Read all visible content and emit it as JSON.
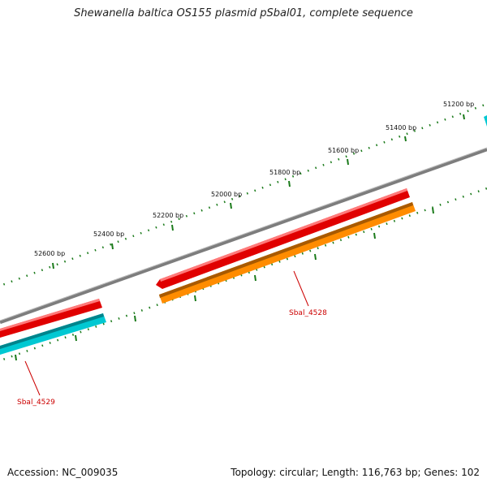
{
  "title": "Shewanella baltica OS155 plasmid pSbal01, complete sequence",
  "footer": {
    "accession": "Accession: NC_009035",
    "summary": "Topology: circular; Length: 116,763 bp; Genes: 102"
  },
  "colors": {
    "backbone": "#8a8a8a",
    "tick": "#1a7a1a",
    "cds": "#e00000",
    "gene_forward": "#ff8c00",
    "gene_reverse": "#00c8d2",
    "label": "#cc0000"
  },
  "ticks": [
    {
      "label": "51200 bp"
    },
    {
      "label": "51400 bp"
    },
    {
      "label": "51600 bp"
    },
    {
      "label": "51800 bp"
    },
    {
      "label": "52000 bp"
    },
    {
      "label": "52200 bp"
    },
    {
      "label": "52400 bp"
    },
    {
      "label": "52600 bp"
    }
  ],
  "genes": [
    {
      "label": "Sbal_4528"
    },
    {
      "label": "Sbal_4529"
    }
  ]
}
